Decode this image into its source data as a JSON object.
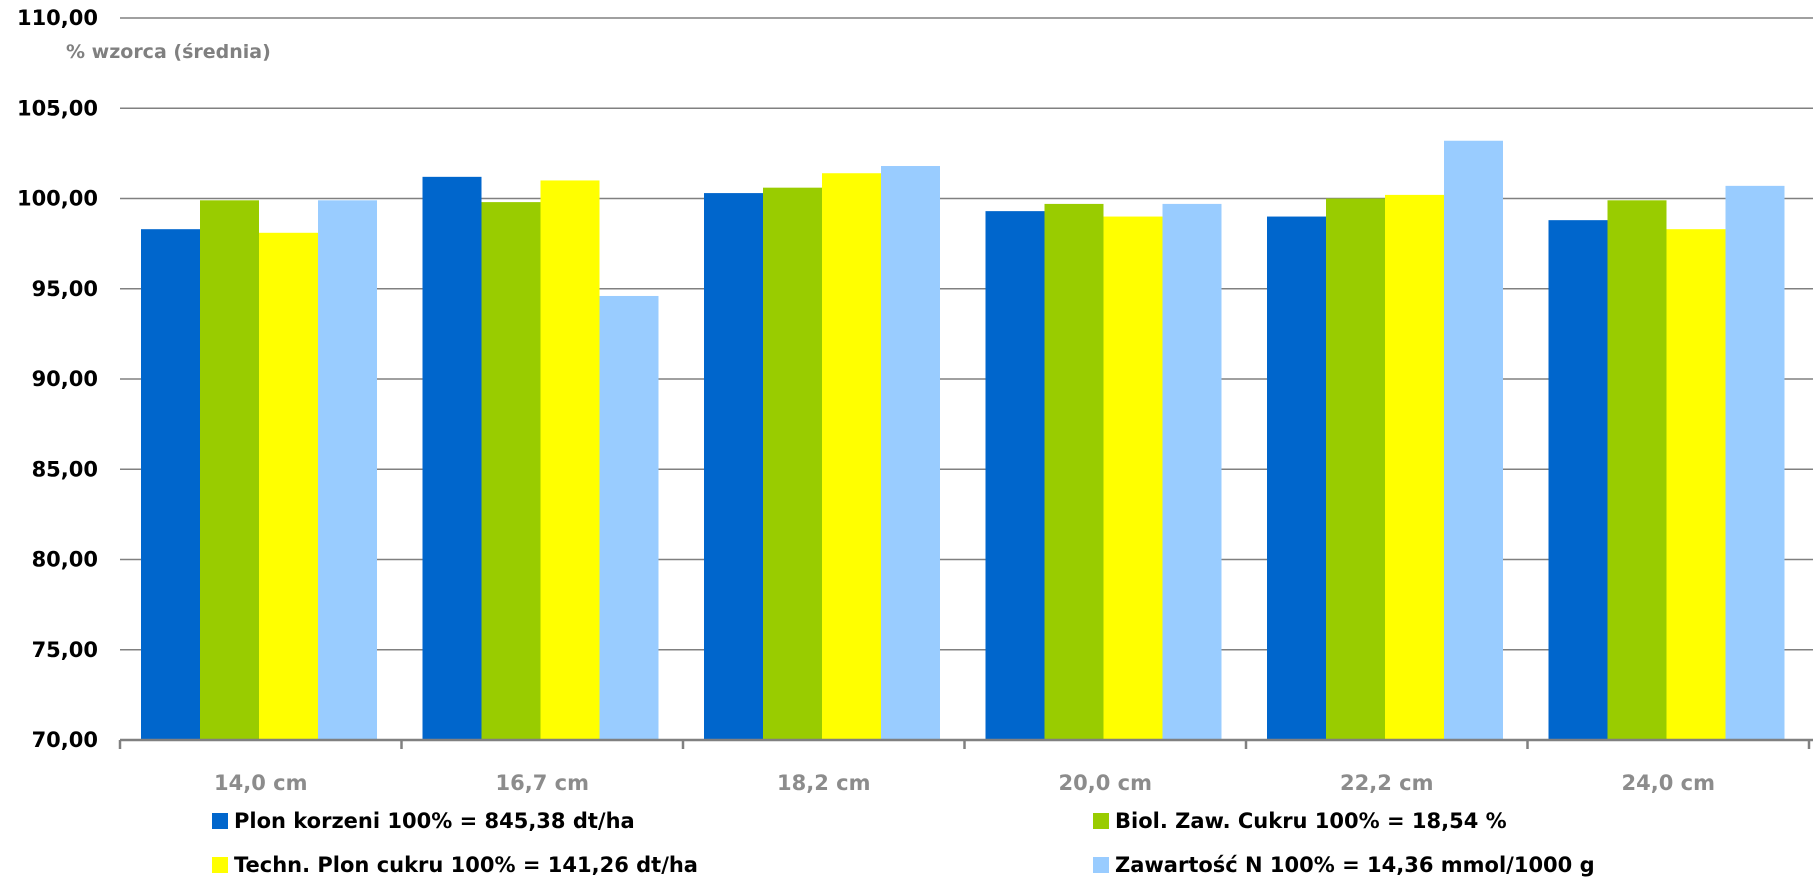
{
  "chart_data": {
    "type": "bar",
    "title": "",
    "ylabel": "% wzorca (średnia)",
    "xlabel": "",
    "ylim": [
      70,
      110
    ],
    "yticks": [
      "70,00",
      "75,00",
      "80,00",
      "85,00",
      "90,00",
      "95,00",
      "100,00",
      "105,00",
      "110,00"
    ],
    "ytick_values": [
      70,
      75,
      80,
      85,
      90,
      95,
      100,
      105,
      110
    ],
    "grid": true,
    "legend_position": "bottom",
    "categories": [
      "14,0 cm",
      "16,7 cm",
      "18,2 cm",
      "20,0 cm",
      "22,2 cm",
      "24,0 cm"
    ],
    "series": [
      {
        "name": "Plon korzeni 100% = 845,38 dt/ha",
        "color": "#0066cc",
        "values": [
          98.3,
          101.2,
          100.3,
          99.3,
          99.0,
          98.8
        ]
      },
      {
        "name": "Biol. Zaw. Cukru 100% = 18,54 %",
        "color": "#99cc00",
        "values": [
          99.9,
          99.8,
          100.6,
          99.7,
          100.0,
          99.9
        ]
      },
      {
        "name": "Techn. Plon cukru 100% = 141,26 dt/ha",
        "color": "#ffff00",
        "values": [
          98.1,
          101.0,
          101.4,
          99.0,
          100.2,
          98.3
        ]
      },
      {
        "name": "Zawartość N 100% = 14,36 mmol/1000 g",
        "color": "#99ccff",
        "values": [
          99.9,
          94.6,
          101.8,
          99.7,
          103.2,
          100.7
        ]
      }
    ]
  }
}
